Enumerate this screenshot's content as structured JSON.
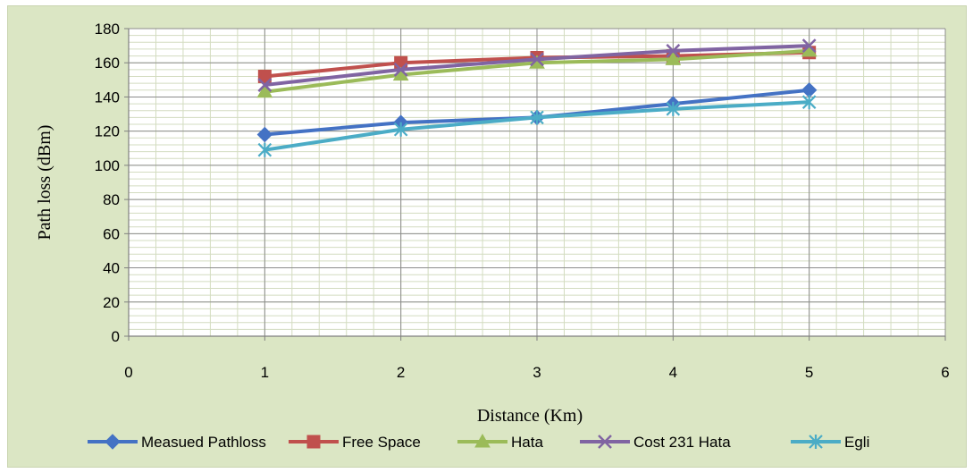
{
  "chart_data": {
    "type": "line",
    "title": "",
    "xlabel": "Distance (Km)",
    "ylabel": "Path loss (dBm)",
    "xlim": [
      0,
      6
    ],
    "ylim": [
      0,
      180
    ],
    "x_ticks": [
      0,
      1,
      2,
      3,
      4,
      5,
      6
    ],
    "y_ticks": [
      0,
      20,
      40,
      60,
      80,
      100,
      120,
      140,
      160,
      180
    ],
    "grid": {
      "major": true,
      "minor": true
    },
    "legend_position": "bottom",
    "x": [
      1,
      2,
      3,
      4,
      5
    ],
    "series": [
      {
        "name": "Measued Pathloss",
        "color": "#4472c4",
        "marker": "diamond",
        "values": [
          118,
          125,
          128,
          136,
          144
        ]
      },
      {
        "name": "Free Space",
        "color": "#c0504d",
        "marker": "square",
        "values": [
          152,
          160,
          163,
          164,
          166
        ]
      },
      {
        "name": "Hata",
        "color": "#9bbb59",
        "marker": "triangle",
        "values": [
          143,
          153,
          160,
          162,
          167
        ]
      },
      {
        "name": "Cost 231 Hata",
        "color": "#8064a2",
        "marker": "x",
        "values": [
          147,
          156,
          162,
          167,
          170
        ]
      },
      {
        "name": "Egli",
        "color": "#4bacc6",
        "marker": "star",
        "values": [
          109,
          121,
          128,
          133,
          137
        ]
      }
    ]
  }
}
